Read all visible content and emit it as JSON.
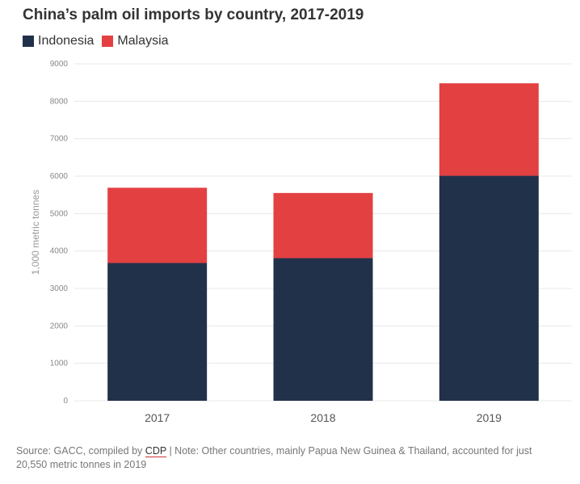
{
  "chart_data": {
    "type": "bar",
    "stacked": true,
    "title": "China’s palm oil imports by country, 2017-2019",
    "ylabel": "1,000 metric tonnes",
    "xlabel": "",
    "categories": [
      "2017",
      "2018",
      "2019"
    ],
    "series": [
      {
        "name": "Indonesia",
        "color": "#22314a",
        "values": [
          3680,
          3810,
          6010
        ]
      },
      {
        "name": "Malaysia",
        "color": "#e34042",
        "values": [
          2010,
          1740,
          2470
        ]
      }
    ],
    "ylim": [
      0,
      9000
    ],
    "yticks": [
      "0",
      "1000",
      "2000",
      "3000",
      "4000",
      "5000",
      "6000",
      "7000",
      "8000",
      "9000"
    ],
    "grid": true,
    "legend": "top-left"
  },
  "footer": {
    "source_prefix": "Source: GACC, compiled by ",
    "source_link": "CDP",
    "note": " | Note: Other countries, mainly Papua New Guinea & Thailand, accounted for just 20,550 metric tonnes in 2019"
  }
}
